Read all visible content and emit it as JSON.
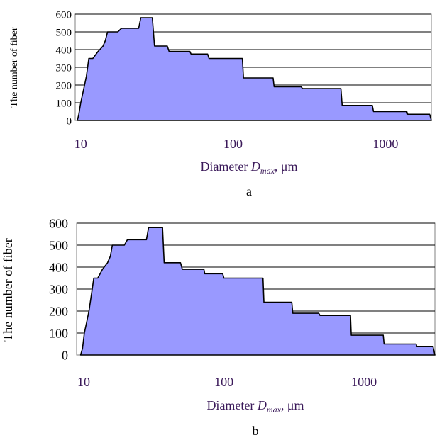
{
  "chart_data": [
    {
      "type": "area",
      "caption": "a",
      "ylabel": "The number of fiber",
      "xlabel_main": "Diameter ",
      "xlabel_symbol": "D",
      "xlabel_sub": "max",
      "xlabel_tail": ", μm",
      "x_scale": "log",
      "xlim": [
        9.2,
        2000
      ],
      "ylim": [
        0,
        600
      ],
      "y_ticks": [
        "0",
        "100",
        "200",
        "300",
        "400",
        "500",
        "600"
      ],
      "x_ticks": [
        {
          "value": 10,
          "label": "10"
        },
        {
          "value": 100,
          "label": "100"
        },
        {
          "value": 1000,
          "label": "1000"
        }
      ],
      "grid": "horizontal",
      "fill_color": "#9999ff",
      "points": [
        [
          9.5,
          0
        ],
        [
          9.7,
          30
        ],
        [
          10.0,
          100
        ],
        [
          10.3,
          150
        ],
        [
          10.6,
          200
        ],
        [
          10.9,
          250
        ],
        [
          11.3,
          350
        ],
        [
          12.0,
          350
        ],
        [
          12.5,
          370
        ],
        [
          13.0,
          390
        ],
        [
          13.5,
          405
        ],
        [
          14.0,
          420
        ],
        [
          14.5,
          450
        ],
        [
          15.0,
          500
        ],
        [
          17.5,
          500
        ],
        [
          18.5,
          520
        ],
        [
          24.0,
          520
        ],
        [
          24.8,
          580
        ],
        [
          29.5,
          580
        ],
        [
          30.5,
          420
        ],
        [
          37.0,
          420
        ],
        [
          38.0,
          390
        ],
        [
          52.0,
          390
        ],
        [
          53.0,
          375
        ],
        [
          68.0,
          375
        ],
        [
          69.5,
          350
        ],
        [
          115.0,
          350
        ],
        [
          117.0,
          240
        ],
        [
          183.0,
          240
        ],
        [
          186.0,
          190
        ],
        [
          280.0,
          190
        ],
        [
          285.0,
          180
        ],
        [
          510.0,
          180
        ],
        [
          520.0,
          85
        ],
        [
          820.0,
          85
        ],
        [
          835.0,
          50
        ],
        [
          1380.0,
          50
        ],
        [
          1400.0,
          35
        ],
        [
          1950.0,
          35
        ],
        [
          2000.0,
          0
        ]
      ]
    },
    {
      "type": "area",
      "caption": "b",
      "ylabel": "The number of fiber",
      "xlabel_main": "Diameter ",
      "xlabel_symbol": "D",
      "xlabel_sub": "max",
      "xlabel_tail": ", μm",
      "x_scale": "log",
      "xlim": [
        8.9,
        3200
      ],
      "ylim": [
        0,
        600
      ],
      "y_ticks": [
        "0",
        "100",
        "200",
        "300",
        "400",
        "500",
        "600"
      ],
      "x_ticks": [
        {
          "value": 10,
          "label": "10"
        },
        {
          "value": 100,
          "label": "100"
        },
        {
          "value": 1000,
          "label": "1000"
        }
      ],
      "grid": "horizontal",
      "fill_color": "#9999ff",
      "points": [
        [
          9.5,
          0
        ],
        [
          9.8,
          30
        ],
        [
          10.1,
          100
        ],
        [
          10.5,
          150
        ],
        [
          10.9,
          200
        ],
        [
          11.2,
          250
        ],
        [
          11.5,
          300
        ],
        [
          11.8,
          350
        ],
        [
          12.6,
          350
        ],
        [
          13.1,
          370
        ],
        [
          13.6,
          390
        ],
        [
          14.2,
          405
        ],
        [
          14.8,
          420
        ],
        [
          15.5,
          450
        ],
        [
          16.0,
          500
        ],
        [
          19.5,
          500
        ],
        [
          20.5,
          525
        ],
        [
          28.0,
          525
        ],
        [
          29.0,
          580
        ],
        [
          36.5,
          580
        ],
        [
          37.5,
          420
        ],
        [
          49.0,
          420
        ],
        [
          50.5,
          390
        ],
        [
          72.0,
          390
        ],
        [
          73.0,
          370
        ],
        [
          98.0,
          370
        ],
        [
          100.0,
          350
        ],
        [
          190.0,
          350
        ],
        [
          193.0,
          240
        ],
        [
          305.0,
          240
        ],
        [
          310.0,
          190
        ],
        [
          475.0,
          190
        ],
        [
          485.0,
          180
        ],
        [
          800.0,
          180
        ],
        [
          810.0,
          90
        ],
        [
          1370.0,
          90
        ],
        [
          1390.0,
          50
        ],
        [
          2350.0,
          50
        ],
        [
          2380.0,
          38
        ],
        [
          3100.0,
          38
        ],
        [
          3200.0,
          0
        ]
      ]
    }
  ]
}
